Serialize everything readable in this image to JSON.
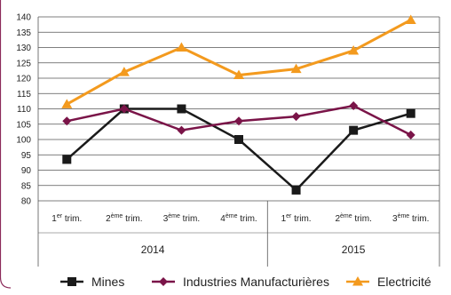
{
  "colors": {
    "frame": "#8b2a5a",
    "grid": "#555555",
    "mines": "#1a1a1a",
    "industries": "#7a1448",
    "electricite": "#f39a1e"
  },
  "chart_data": {
    "type": "line",
    "ylim": [
      80,
      140
    ],
    "yticks": [
      80,
      85,
      90,
      95,
      100,
      105,
      110,
      115,
      120,
      125,
      130,
      135,
      140
    ],
    "grid": true,
    "legend_position": "bottom",
    "categories": [
      {
        "num": "1",
        "sup": "er",
        "rest": " trim."
      },
      {
        "num": "2",
        "sup": "ème",
        "rest": " trim."
      },
      {
        "num": "3",
        "sup": "ème",
        "rest": " trim."
      },
      {
        "num": "4",
        "sup": "ème",
        "rest": " trim."
      },
      {
        "num": "1",
        "sup": "er",
        "rest": " trim."
      },
      {
        "num": "2",
        "sup": "ème",
        "rest": " trim."
      },
      {
        "num": "3",
        "sup": "ème",
        "rest": " trim."
      }
    ],
    "groups": [
      {
        "label": "2014",
        "span": [
          0,
          3
        ]
      },
      {
        "label": "2015",
        "span": [
          4,
          6
        ]
      }
    ],
    "series": [
      {
        "name": "Mines",
        "marker": "square",
        "values": [
          93.5,
          110,
          110,
          100,
          83.5,
          103,
          108.5
        ]
      },
      {
        "name": "Industries Manufacturières",
        "marker": "diamond",
        "values": [
          106,
          110,
          103,
          106,
          107.5,
          111,
          101.5
        ]
      },
      {
        "name": "Electricité",
        "marker": "triangle",
        "values": [
          111.5,
          122,
          130,
          121,
          123,
          129,
          139
        ]
      }
    ]
  }
}
